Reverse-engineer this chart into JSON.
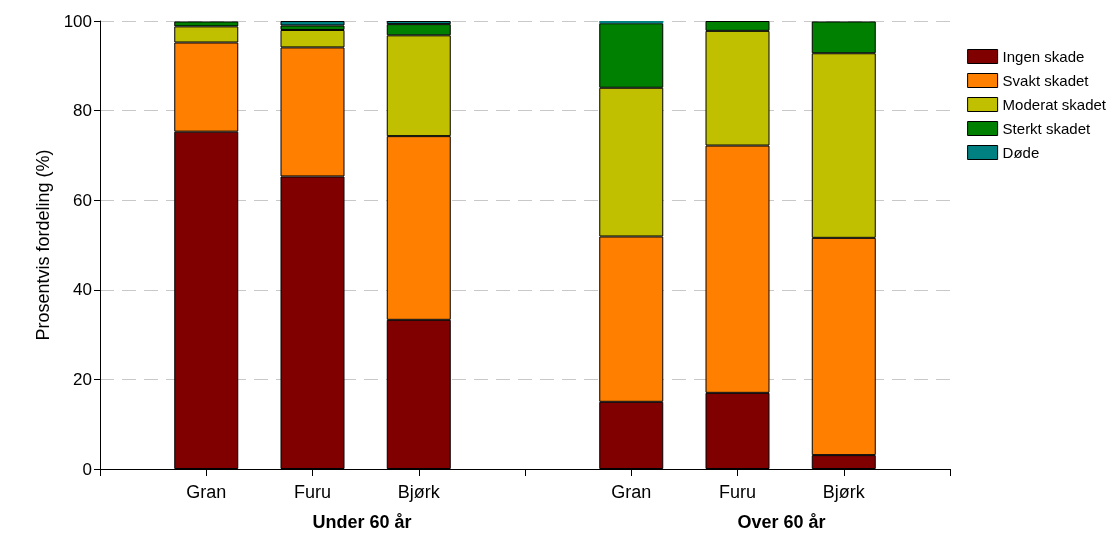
{
  "chart_data": {
    "type": "bar",
    "stacked": true,
    "ylabel": "Prosentvis fordeling (%)",
    "categories": [
      null,
      "Gran",
      "Furu",
      "Bjørk",
      null,
      "Gran",
      "Furu",
      "Bjørk",
      null
    ],
    "series": [
      {
        "name": "Ingen skade",
        "color": "#800000",
        "values": [
          null,
          75.3,
          65.3,
          33.3,
          null,
          15.0,
          17.0,
          3.1,
          null
        ]
      },
      {
        "name": "Svakt skadet",
        "color": "#ff8000",
        "values": [
          null,
          19.9,
          28.8,
          41.0,
          null,
          36.9,
          55.2,
          48.5,
          null
        ]
      },
      {
        "name": "Moderat skadet",
        "color": "#c0c000",
        "values": [
          null,
          3.6,
          3.9,
          22.5,
          null,
          33.2,
          25.6,
          41.2,
          null
        ]
      },
      {
        "name": "Sterkt skadet",
        "color": "#008000",
        "values": [
          null,
          1.1,
          1.0,
          2.5,
          null,
          14.4,
          2.2,
          7.1,
          null
        ]
      },
      {
        "name": "Døde",
        "color": "#008080",
        "values": [
          null,
          null,
          1.0,
          0.7,
          null,
          0.5,
          0,
          null,
          null
        ]
      }
    ],
    "ylim": [
      0,
      100
    ],
    "yticks": [
      0,
      20,
      40,
      60,
      80,
      100
    ],
    "grid": "y",
    "legend": "top right",
    "annotations": [
      "Under 60 år",
      "Over 60 år"
    ]
  }
}
